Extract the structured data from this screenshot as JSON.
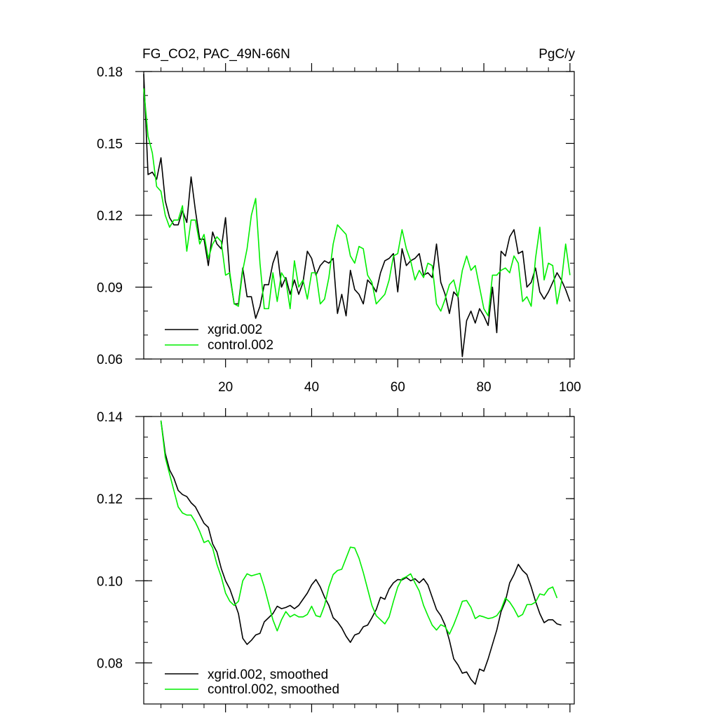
{
  "chart_data": [
    {
      "type": "line",
      "title_left": "FG_CO2, PAC_49N-66N",
      "title_right": "PgC/y",
      "xlim": [
        1,
        101
      ],
      "ylim": [
        0.06,
        0.18
      ],
      "y_ticks": [
        "0.06",
        "0.09",
        "0.12",
        "0.15",
        "0.18"
      ],
      "x_ticks": [
        "20",
        "40",
        "60",
        "80",
        "100"
      ],
      "legend_position": "bottom-left",
      "series": [
        {
          "name": "xgrid.002",
          "color": "#000000",
          "x_start": 1,
          "values": [
            0.179,
            0.137,
            0.138,
            0.135,
            0.144,
            0.126,
            0.119,
            0.116,
            0.116,
            0.122,
            0.117,
            0.136,
            0.122,
            0.11,
            0.11,
            0.099,
            0.113,
            0.108,
            0.106,
            0.119,
            0.095,
            0.083,
            0.083,
            0.098,
            0.086,
            0.086,
            0.077,
            0.082,
            0.091,
            0.091,
            0.1,
            0.105,
            0.09,
            0.094,
            0.087,
            0.093,
            0.087,
            0.092,
            0.105,
            0.102,
            0.095,
            0.099,
            0.101,
            0.1,
            0.102,
            0.079,
            0.087,
            0.078,
            0.097,
            0.089,
            0.087,
            0.083,
            0.093,
            0.091,
            0.088,
            0.096,
            0.101,
            0.102,
            0.104,
            0.088,
            0.106,
            0.099,
            0.101,
            0.102,
            0.104,
            0.095,
            0.096,
            0.094,
            0.108,
            0.092,
            0.087,
            0.079,
            0.088,
            0.086,
            0.061,
            0.076,
            0.08,
            0.075,
            0.081,
            0.078,
            0.074,
            0.09,
            0.071,
            0.105,
            0.103,
            0.111,
            0.114,
            0.104,
            0.105,
            0.09,
            0.092,
            0.098,
            0.088,
            0.085,
            0.088,
            0.092,
            0.096,
            0.093,
            0.089,
            0.084
          ]
        },
        {
          "name": "control.002",
          "color": "#00ee00",
          "x_start": 1,
          "values": [
            0.173,
            0.153,
            0.146,
            0.132,
            0.13,
            0.12,
            0.115,
            0.118,
            0.118,
            0.124,
            0.105,
            0.118,
            0.118,
            0.108,
            0.112,
            0.102,
            0.108,
            0.111,
            0.109,
            0.095,
            0.096,
            0.083,
            0.082,
            0.097,
            0.106,
            0.12,
            0.127,
            0.1,
            0.081,
            0.081,
            0.096,
            0.084,
            0.096,
            0.093,
            0.081,
            0.101,
            0.09,
            0.093,
            0.085,
            0.096,
            0.096,
            0.083,
            0.085,
            0.094,
            0.108,
            0.116,
            0.114,
            0.112,
            0.103,
            0.1,
            0.107,
            0.106,
            0.095,
            0.092,
            0.083,
            0.085,
            0.087,
            0.093,
            0.103,
            0.104,
            0.114,
            0.106,
            0.101,
            0.093,
            0.097,
            0.094,
            0.1,
            0.099,
            0.083,
            0.08,
            0.085,
            0.091,
            0.093,
            0.086,
            0.097,
            0.103,
            0.097,
            0.099,
            0.09,
            0.081,
            0.078,
            0.095,
            0.095,
            0.097,
            0.098,
            0.096,
            0.103,
            0.1,
            0.084,
            0.086,
            0.082,
            0.102,
            0.115,
            0.093,
            0.1,
            0.099,
            0.083,
            0.092,
            0.108,
            0.095
          ]
        }
      ]
    },
    {
      "type": "line",
      "xlim": [
        1,
        101
      ],
      "ylim": [
        0.07,
        0.14
      ],
      "y_ticks": [
        "0.08",
        "0.10",
        "0.12",
        "0.14"
      ],
      "legend_position": "bottom-left",
      "series": [
        {
          "name": "xgrid.002, smoothed",
          "color": "#000000",
          "x_start": 5,
          "values": [
            0.139,
            0.131,
            0.127,
            0.125,
            0.122,
            0.121,
            0.1205,
            0.119,
            0.118,
            0.116,
            0.114,
            0.113,
            0.109,
            0.107,
            0.103,
            0.1,
            0.098,
            0.095,
            0.092,
            0.086,
            0.0845,
            0.0855,
            0.0868,
            0.0872,
            0.09,
            0.091,
            0.092,
            0.0938,
            0.0932,
            0.0935,
            0.094,
            0.0932,
            0.094,
            0.0955,
            0.097,
            0.099,
            0.1003,
            0.0985,
            0.096,
            0.094,
            0.091,
            0.09,
            0.0885,
            0.0865,
            0.085,
            0.0868,
            0.0872,
            0.0888,
            0.0892,
            0.091,
            0.093,
            0.096,
            0.0955,
            0.098,
            0.0995,
            0.1003,
            0.1002,
            0.1008,
            0.1,
            0.1005,
            0.0995,
            0.1005,
            0.099,
            0.096,
            0.093,
            0.0915,
            0.0892,
            0.0855,
            0.081,
            0.0795,
            0.0775,
            0.0778,
            0.076,
            0.0748,
            0.0785,
            0.078,
            0.081,
            0.0845,
            0.088,
            0.0925,
            0.095,
            0.0995,
            0.1015,
            0.104,
            0.1025,
            0.1015,
            0.0985,
            0.095,
            0.092,
            0.0898,
            0.0905,
            0.0905,
            0.0895,
            0.0892
          ]
        },
        {
          "name": "control.002, smoothed",
          "color": "#00ee00",
          "x_start": 5,
          "values": [
            0.139,
            0.13,
            0.126,
            0.122,
            0.118,
            0.1165,
            0.116,
            0.116,
            0.1143,
            0.112,
            0.1093,
            0.1098,
            0.108,
            0.104,
            0.101,
            0.097,
            0.095,
            0.094,
            0.095,
            0.1,
            0.1017,
            0.1012,
            0.1015,
            0.1018,
            0.0985,
            0.0945,
            0.0905,
            0.0878,
            0.0905,
            0.0925,
            0.0912,
            0.0918,
            0.0912,
            0.0912,
            0.0918,
            0.0938,
            0.0915,
            0.0912,
            0.094,
            0.0985,
            0.1015,
            0.1025,
            0.1028,
            0.1055,
            0.1082,
            0.108,
            0.1055,
            0.102,
            0.098,
            0.094,
            0.0915,
            0.0905,
            0.0895,
            0.0912,
            0.095,
            0.0985,
            0.1005,
            0.101,
            0.1017,
            0.0995,
            0.0975,
            0.094,
            0.0915,
            0.0892,
            0.088,
            0.0893,
            0.0888,
            0.087,
            0.0893,
            0.092,
            0.095,
            0.0952,
            0.0935,
            0.0908,
            0.0915,
            0.0912,
            0.0908,
            0.091,
            0.0915,
            0.093,
            0.0958,
            0.0948,
            0.0932,
            0.0912,
            0.0918,
            0.0942,
            0.0942,
            0.0948,
            0.0968,
            0.0965,
            0.098,
            0.0985,
            0.0958
          ]
        }
      ]
    }
  ]
}
